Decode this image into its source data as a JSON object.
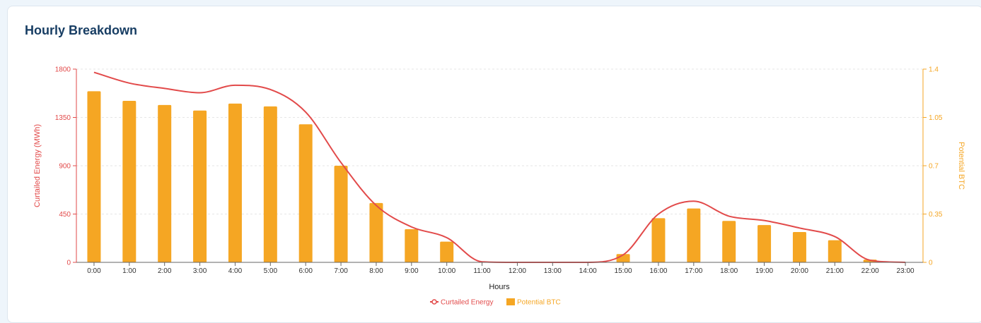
{
  "card": {
    "title": "Hourly Breakdown"
  },
  "colors": {
    "energy": "#e24a4a",
    "btc": "#f5a623",
    "axis": "#666666",
    "grid": "#e6e6e6",
    "title": "#173d63"
  },
  "chart_data": {
    "type": "bar",
    "xlabel": "Hours",
    "categories": [
      "0:00",
      "1:00",
      "2:00",
      "3:00",
      "4:00",
      "5:00",
      "6:00",
      "7:00",
      "8:00",
      "9:00",
      "10:00",
      "11:00",
      "12:00",
      "13:00",
      "14:00",
      "15:00",
      "16:00",
      "17:00",
      "18:00",
      "19:00",
      "20:00",
      "21:00",
      "22:00",
      "23:00"
    ],
    "series": [
      {
        "name": "Curtailed Energy",
        "type": "line",
        "axis": "left",
        "values": [
          1770,
          1670,
          1620,
          1580,
          1650,
          1610,
          1400,
          930,
          530,
          330,
          230,
          5,
          0,
          0,
          0,
          70,
          450,
          570,
          430,
          390,
          320,
          240,
          20,
          0
        ]
      },
      {
        "name": "Potential BTC",
        "type": "bar",
        "axis": "right",
        "values": [
          1.24,
          1.17,
          1.14,
          1.1,
          1.15,
          1.13,
          1.0,
          0.7,
          0.43,
          0.24,
          0.15,
          0,
          0,
          0,
          0,
          0.06,
          0.32,
          0.39,
          0.3,
          0.27,
          0.22,
          0.16,
          0.02,
          0
        ]
      }
    ],
    "y_left": {
      "label": "Curtailed Energy (MWh)",
      "range": [
        0,
        1800
      ],
      "ticks": [
        "0",
        "450",
        "900",
        "1350",
        "1800"
      ]
    },
    "y_right": {
      "label": "Potential BTC",
      "range": [
        0,
        1.4
      ],
      "ticks": [
        "0",
        "0.35",
        "0.7",
        "1.05",
        "1.4"
      ]
    },
    "grid": true,
    "legend_position": "bottom-center",
    "legend": [
      "Curtailed Energy",
      "Potential BTC"
    ]
  }
}
